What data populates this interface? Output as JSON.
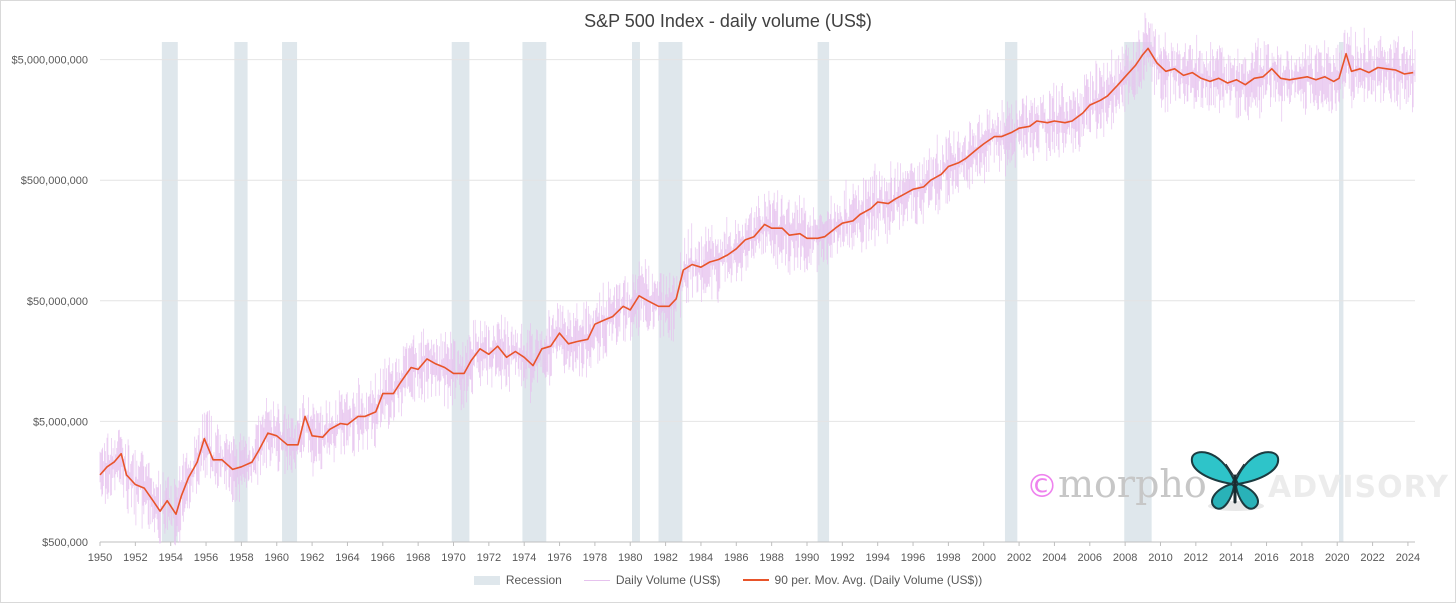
{
  "chart_data": {
    "type": "line",
    "title": "S&P 500 Index - daily volume (US$)",
    "y_scale": "log",
    "ylim": [
      500000,
      7000000000
    ],
    "xlim": [
      1950,
      2024.4
    ],
    "y_ticks": [
      {
        "value": 500000,
        "label": "$500,000"
      },
      {
        "value": 5000000,
        "label": "$5,000,000"
      },
      {
        "value": 50000000,
        "label": "$50,000,000"
      },
      {
        "value": 500000000,
        "label": "$500,000,000"
      },
      {
        "value": 5000000000,
        "label": "$5,000,000,000"
      }
    ],
    "x_ticks": [
      "1950",
      "1952",
      "1954",
      "1956",
      "1958",
      "1960",
      "1962",
      "1964",
      "1966",
      "1968",
      "1970",
      "1972",
      "1974",
      "1976",
      "1978",
      "1980",
      "1982",
      "1984",
      "1986",
      "1988",
      "1990",
      "1992",
      "1994",
      "1996",
      "1998",
      "2000",
      "2002",
      "2004",
      "2006",
      "2008",
      "2010",
      "2012",
      "2014",
      "2016",
      "2018",
      "2020",
      "2022",
      "2024"
    ],
    "grid": "horizontal",
    "legend_position": "bottom",
    "recessions": [
      [
        1953.5,
        1954.4
      ],
      [
        1957.6,
        1958.35
      ],
      [
        1960.3,
        1961.15
      ],
      [
        1969.9,
        1970.9
      ],
      [
        1973.9,
        1975.25
      ],
      [
        1980.1,
        1980.55
      ],
      [
        1981.6,
        1982.95
      ],
      [
        1990.6,
        1991.25
      ],
      [
        2001.2,
        2001.9
      ],
      [
        2007.95,
        2009.5
      ],
      [
        2020.1,
        2020.35
      ]
    ],
    "series": [
      {
        "name": "Recession",
        "kind": "band",
        "color": "#dfe7ec"
      },
      {
        "name": "Daily Volume (US$)",
        "kind": "noise",
        "color": "#e6c2ee"
      },
      {
        "name": "90 per. Mov. Avg. (Daily Volume (US$))",
        "kind": "line",
        "color": "#e8542a",
        "points": [
          [
            1950.0,
            1800000
          ],
          [
            1950.4,
            2100000
          ],
          [
            1950.8,
            2300000
          ],
          [
            1951.2,
            2700000
          ],
          [
            1951.5,
            1800000
          ],
          [
            1952.0,
            1500000
          ],
          [
            1952.5,
            1400000
          ],
          [
            1953.0,
            1100000
          ],
          [
            1953.4,
            900000
          ],
          [
            1953.8,
            1100000
          ],
          [
            1954.3,
            850000
          ],
          [
            1954.6,
            1200000
          ],
          [
            1955.0,
            1700000
          ],
          [
            1955.5,
            2300000
          ],
          [
            1955.9,
            3600000
          ],
          [
            1956.4,
            2400000
          ],
          [
            1956.9,
            2400000
          ],
          [
            1957.5,
            2000000
          ],
          [
            1958.0,
            2100000
          ],
          [
            1958.6,
            2300000
          ],
          [
            1959.0,
            2900000
          ],
          [
            1959.5,
            4000000
          ],
          [
            1960.0,
            3800000
          ],
          [
            1960.6,
            3200000
          ],
          [
            1961.2,
            3200000
          ],
          [
            1961.6,
            5500000
          ],
          [
            1962.0,
            3800000
          ],
          [
            1962.6,
            3700000
          ],
          [
            1963.0,
            4300000
          ],
          [
            1963.6,
            4800000
          ],
          [
            1964.0,
            4700000
          ],
          [
            1964.6,
            5500000
          ],
          [
            1965.0,
            5500000
          ],
          [
            1965.6,
            6000000
          ],
          [
            1966.0,
            8500000
          ],
          [
            1966.6,
            8500000
          ],
          [
            1967.0,
            10500000
          ],
          [
            1967.6,
            14000000
          ],
          [
            1968.0,
            13500000
          ],
          [
            1968.5,
            16500000
          ],
          [
            1969.0,
            15000000
          ],
          [
            1969.5,
            14000000
          ],
          [
            1970.0,
            12500000
          ],
          [
            1970.6,
            12500000
          ],
          [
            1971.0,
            16000000
          ],
          [
            1971.5,
            20000000
          ],
          [
            1972.0,
            18000000
          ],
          [
            1972.5,
            21000000
          ],
          [
            1973.0,
            17000000
          ],
          [
            1973.5,
            19000000
          ],
          [
            1974.0,
            17000000
          ],
          [
            1974.5,
            14500000
          ],
          [
            1975.0,
            20000000
          ],
          [
            1975.5,
            21000000
          ],
          [
            1976.0,
            27000000
          ],
          [
            1976.5,
            22000000
          ],
          [
            1977.0,
            23000000
          ],
          [
            1977.6,
            24000000
          ],
          [
            1978.0,
            32000000
          ],
          [
            1978.6,
            35000000
          ],
          [
            1979.0,
            37000000
          ],
          [
            1979.6,
            45000000
          ],
          [
            1980.0,
            42000000
          ],
          [
            1980.5,
            55000000
          ],
          [
            1981.0,
            50000000
          ],
          [
            1981.6,
            45000000
          ],
          [
            1982.2,
            45000000
          ],
          [
            1982.6,
            52000000
          ],
          [
            1983.0,
            90000000
          ],
          [
            1983.5,
            100000000
          ],
          [
            1984.0,
            95000000
          ],
          [
            1984.5,
            105000000
          ],
          [
            1985.0,
            110000000
          ],
          [
            1985.5,
            120000000
          ],
          [
            1986.0,
            135000000
          ],
          [
            1986.5,
            160000000
          ],
          [
            1987.0,
            170000000
          ],
          [
            1987.6,
            215000000
          ],
          [
            1988.0,
            200000000
          ],
          [
            1988.6,
            200000000
          ],
          [
            1989.0,
            175000000
          ],
          [
            1989.6,
            180000000
          ],
          [
            1990.0,
            165000000
          ],
          [
            1990.6,
            165000000
          ],
          [
            1991.0,
            170000000
          ],
          [
            1991.6,
            200000000
          ],
          [
            1992.0,
            220000000
          ],
          [
            1992.6,
            230000000
          ],
          [
            1993.0,
            260000000
          ],
          [
            1993.6,
            290000000
          ],
          [
            1994.0,
            330000000
          ],
          [
            1994.6,
            320000000
          ],
          [
            1995.0,
            350000000
          ],
          [
            1995.6,
            390000000
          ],
          [
            1996.0,
            420000000
          ],
          [
            1996.6,
            440000000
          ],
          [
            1997.0,
            500000000
          ],
          [
            1997.6,
            560000000
          ],
          [
            1998.0,
            650000000
          ],
          [
            1998.6,
            700000000
          ],
          [
            1999.0,
            760000000
          ],
          [
            1999.6,
            900000000
          ],
          [
            2000.0,
            1000000000
          ],
          [
            2000.6,
            1150000000
          ],
          [
            2001.0,
            1150000000
          ],
          [
            2001.6,
            1250000000
          ],
          [
            2002.0,
            1350000000
          ],
          [
            2002.6,
            1400000000
          ],
          [
            2003.0,
            1550000000
          ],
          [
            2003.6,
            1500000000
          ],
          [
            2004.0,
            1550000000
          ],
          [
            2004.6,
            1500000000
          ],
          [
            2005.0,
            1550000000
          ],
          [
            2005.6,
            1800000000
          ],
          [
            2006.0,
            2100000000
          ],
          [
            2006.6,
            2300000000
          ],
          [
            2007.0,
            2500000000
          ],
          [
            2007.6,
            3100000000
          ],
          [
            2008.0,
            3600000000
          ],
          [
            2008.6,
            4500000000
          ],
          [
            2009.0,
            5500000000
          ],
          [
            2009.3,
            6200000000
          ],
          [
            2009.8,
            4700000000
          ],
          [
            2010.3,
            4000000000
          ],
          [
            2010.8,
            4200000000
          ],
          [
            2011.3,
            3700000000
          ],
          [
            2011.8,
            3900000000
          ],
          [
            2012.3,
            3500000000
          ],
          [
            2012.8,
            3300000000
          ],
          [
            2013.3,
            3500000000
          ],
          [
            2013.8,
            3200000000
          ],
          [
            2014.3,
            3400000000
          ],
          [
            2014.8,
            3100000000
          ],
          [
            2015.3,
            3500000000
          ],
          [
            2015.8,
            3600000000
          ],
          [
            2016.3,
            4200000000
          ],
          [
            2016.8,
            3500000000
          ],
          [
            2017.3,
            3400000000
          ],
          [
            2017.8,
            3500000000
          ],
          [
            2018.3,
            3600000000
          ],
          [
            2018.8,
            3400000000
          ],
          [
            2019.3,
            3600000000
          ],
          [
            2019.8,
            3300000000
          ],
          [
            2020.1,
            3500000000
          ],
          [
            2020.5,
            5600000000
          ],
          [
            2020.8,
            4000000000
          ],
          [
            2021.3,
            4200000000
          ],
          [
            2021.8,
            3900000000
          ],
          [
            2022.3,
            4300000000
          ],
          [
            2022.8,
            4200000000
          ],
          [
            2023.3,
            4100000000
          ],
          [
            2023.8,
            3800000000
          ],
          [
            2024.3,
            3900000000
          ]
        ]
      }
    ]
  },
  "legend": {
    "recession": "Recession",
    "daily": "Daily Volume (US$)",
    "ma": "90 per. Mov. Avg. (Daily Volume (US$))"
  },
  "watermark": {
    "symbol": "©",
    "brand": "morpho",
    "suffix": "ADVISORY",
    "icon": "butterfly-icon"
  }
}
